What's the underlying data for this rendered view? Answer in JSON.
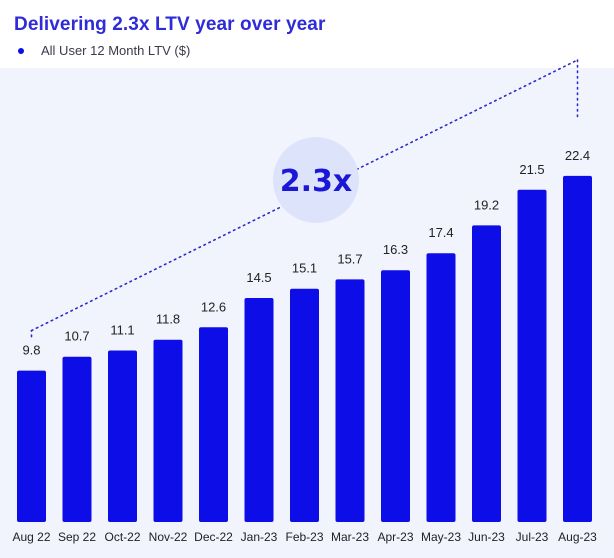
{
  "title": "Delivering 2.3x LTV year over year",
  "chart_data": {
    "type": "bar",
    "title": "Delivering 2.3x LTV year over year",
    "categories": [
      "Aug 22",
      "Sep 22",
      "Oct-22",
      "Nov-22",
      "Dec-22",
      "Jan-23",
      "Feb-23",
      "Mar-23",
      "Apr-23",
      "May-23",
      "Jun-23",
      "Jul-23",
      "Aug-23"
    ],
    "series": [
      {
        "name": "All User 12 Month LTV ($)",
        "values": [
          9.8,
          10.7,
          11.1,
          11.8,
          12.6,
          14.5,
          15.1,
          15.7,
          16.3,
          17.4,
          19.2,
          21.5,
          22.4
        ]
      }
    ],
    "data_labels": [
      "9.8",
      "10.7",
      "11.1",
      "11.8",
      "12.6",
      "14.5",
      "15.1",
      "15.7",
      "16.3",
      "17.4",
      "19.2",
      "21.5",
      "22.4"
    ],
    "annotation": "2.3x",
    "ylim": [
      0,
      25
    ],
    "grid": false,
    "legend_position": "top-left",
    "colors": {
      "bar": "#0d0de8",
      "title": "#2f2bd8",
      "background": "#f2f4fd",
      "badge": "#dde3fb",
      "trend_line": "#2b2bd0"
    }
  }
}
